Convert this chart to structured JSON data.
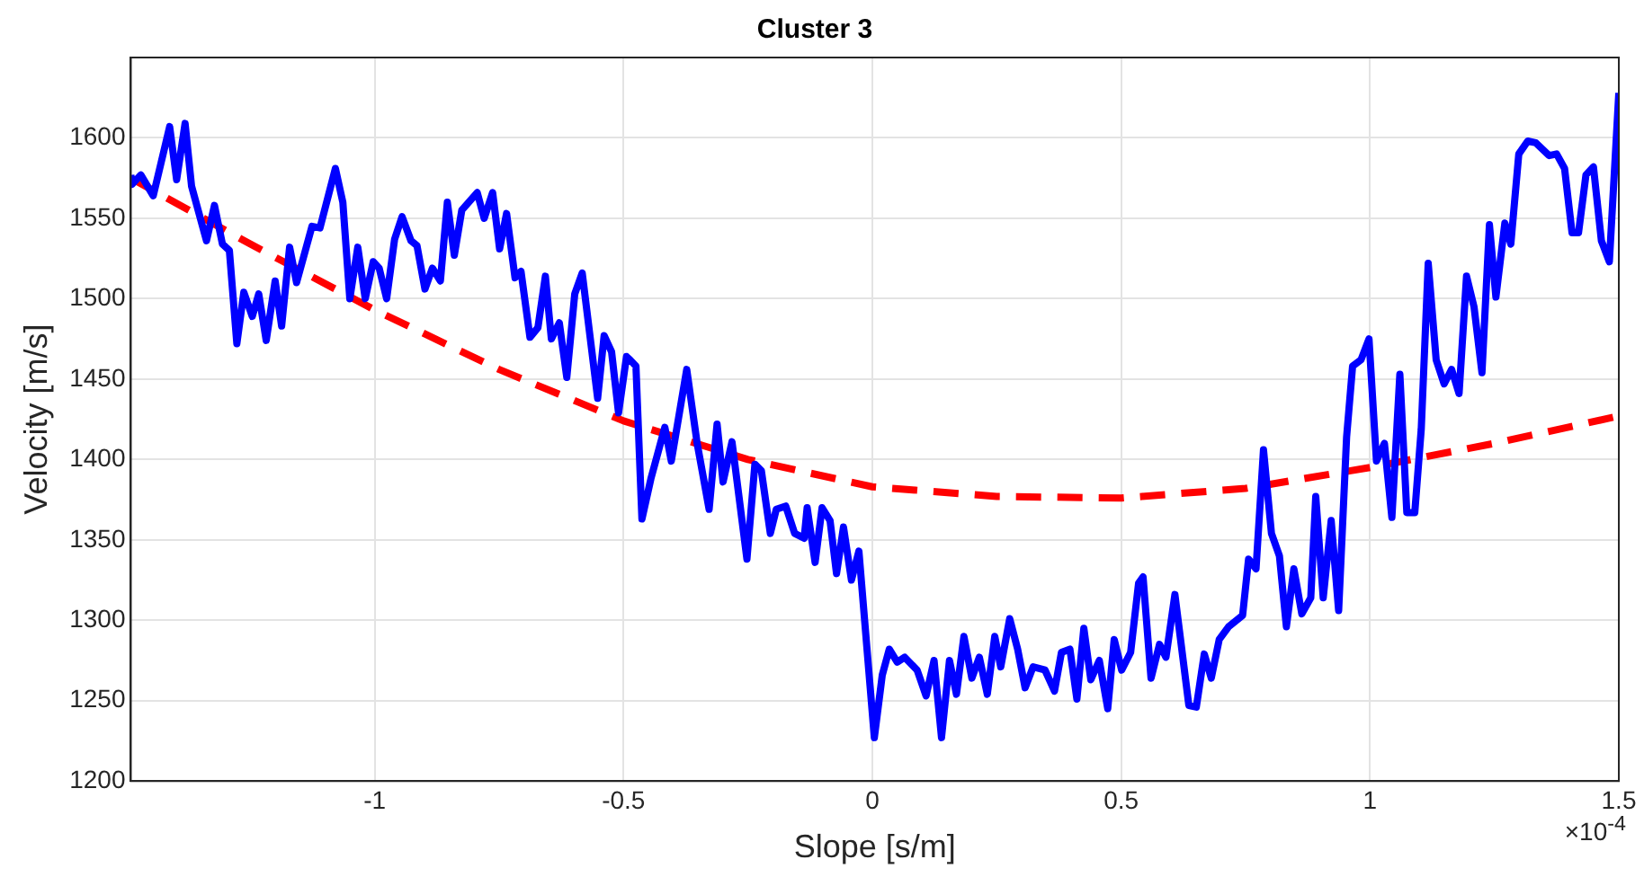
{
  "chart_data": {
    "type": "line",
    "title": "Cluster 3",
    "xlabel": "Slope [s/m]",
    "ylabel": "Velocity [m/s]",
    "annotations": [
      "×10$^{-4}$"
    ],
    "xlim": [
      -1.49,
      1.5
    ],
    "xticks": [
      -1,
      -0.5,
      0,
      0.5,
      1,
      1.5
    ],
    "ylim": [
      1200,
      1650
    ],
    "yticks": [
      1200,
      1250,
      1300,
      1350,
      1400,
      1450,
      1500,
      1550,
      1600
    ],
    "grid": true,
    "legend": false,
    "marker": "none",
    "series": [
      {
        "color": "#0000ff",
        "line_style": "solid",
        "x": [
          -1.49,
          -1.488,
          -1.47,
          -1.445,
          -1.412,
          -1.398,
          -1.381,
          -1.368,
          -1.338,
          -1.322,
          -1.306,
          -1.292,
          -1.277,
          -1.263,
          -1.246,
          -1.233,
          -1.218,
          -1.2,
          -1.187,
          -1.171,
          -1.157,
          -1.126,
          -1.11,
          -1.079,
          -1.064,
          -1.05,
          -1.034,
          -1.019,
          -1.003,
          -0.991,
          -0.976,
          -0.96,
          -0.945,
          -0.927,
          -0.915,
          -0.899,
          -0.884,
          -0.868,
          -0.854,
          -0.84,
          -0.825,
          -0.794,
          -0.78,
          -0.763,
          -0.749,
          -0.735,
          -0.718,
          -0.706,
          -0.688,
          -0.672,
          -0.657,
          -0.645,
          -0.629,
          -0.614,
          -0.598,
          -0.583,
          -0.552,
          -0.539,
          -0.524,
          -0.51,
          -0.494,
          -0.487,
          -0.475,
          -0.463,
          -0.445,
          -0.417,
          -0.404,
          -0.373,
          -0.352,
          -0.328,
          -0.312,
          -0.3,
          -0.282,
          -0.252,
          -0.236,
          -0.223,
          -0.205,
          -0.193,
          -0.174,
          -0.156,
          -0.137,
          -0.131,
          -0.115,
          -0.101,
          -0.085,
          -0.072,
          -0.058,
          -0.042,
          -0.027,
          0.004,
          0.02,
          0.034,
          0.05,
          0.065,
          0.09,
          0.108,
          0.124,
          0.139,
          0.155,
          0.169,
          0.184,
          0.2,
          0.215,
          0.231,
          0.246,
          0.258,
          0.276,
          0.292,
          0.307,
          0.323,
          0.347,
          0.366,
          0.38,
          0.397,
          0.411,
          0.425,
          0.439,
          0.456,
          0.473,
          0.486,
          0.501,
          0.519,
          0.535,
          0.544,
          0.56,
          0.577,
          0.59,
          0.608,
          0.636,
          0.651,
          0.667,
          0.681,
          0.697,
          0.716,
          0.744,
          0.756,
          0.771,
          0.786,
          0.802,
          0.818,
          0.832,
          0.847,
          0.863,
          0.881,
          0.891,
          0.906,
          0.922,
          0.937,
          0.953,
          0.965,
          0.982,
          0.998,
          1.013,
          1.029,
          1.044,
          1.06,
          1.074,
          1.09,
          1.103,
          1.117,
          1.133,
          1.149,
          1.164,
          1.179,
          1.194,
          1.209,
          1.225,
          1.24,
          1.253,
          1.271,
          1.283,
          1.299,
          1.317,
          1.333,
          1.36,
          1.375,
          1.391,
          1.406,
          1.419,
          1.434,
          1.449,
          1.465,
          1.481,
          1.5
        ],
        "values": [
          1577,
          1571,
          1577,
          1564,
          1607,
          1574,
          1609,
          1570,
          1536,
          1558,
          1534,
          1530,
          1472,
          1504,
          1489,
          1503,
          1474,
          1511,
          1483,
          1532,
          1510,
          1545,
          1544,
          1581,
          1560,
          1500,
          1532,
          1500,
          1523,
          1519,
          1500,
          1537,
          1551,
          1536,
          1533,
          1506,
          1519,
          1511,
          1560,
          1527,
          1555,
          1566,
          1550,
          1566,
          1531,
          1553,
          1513,
          1517,
          1476,
          1482,
          1514,
          1475,
          1485,
          1451,
          1503,
          1516,
          1438,
          1477,
          1467,
          1429,
          1464,
          1462,
          1458,
          1363,
          1388,
          1420,
          1399,
          1456,
          1410,
          1369,
          1422,
          1386,
          1411,
          1338,
          1397,
          1393,
          1354,
          1369,
          1371,
          1354,
          1351,
          1370,
          1336,
          1370,
          1362,
          1329,
          1358,
          1325,
          1343,
          1227,
          1266,
          1282,
          1274,
          1277,
          1269,
          1253,
          1275,
          1227,
          1275,
          1254,
          1290,
          1264,
          1277,
          1254,
          1290,
          1271,
          1301,
          1282,
          1258,
          1271,
          1269,
          1256,
          1280,
          1282,
          1251,
          1295,
          1263,
          1275,
          1245,
          1288,
          1269,
          1280,
          1323,
          1327,
          1264,
          1285,
          1277,
          1316,
          1247,
          1246,
          1279,
          1264,
          1288,
          1296,
          1303,
          1338,
          1332,
          1406,
          1354,
          1340,
          1296,
          1332,
          1304,
          1314,
          1377,
          1314,
          1362,
          1306,
          1414,
          1458,
          1462,
          1475,
          1399,
          1410,
          1364,
          1453,
          1367,
          1367,
          1419,
          1522,
          1462,
          1447,
          1456,
          1441,
          1514,
          1495,
          1454,
          1546,
          1501,
          1547,
          1534,
          1590,
          1598,
          1597,
          1589,
          1590,
          1581,
          1541,
          1541,
          1577,
          1582,
          1536,
          1523,
          1628
        ]
      },
      {
        "color": "#ff0000",
        "line_style": "dashed",
        "x": [
          -1.49,
          -1.25,
          -1,
          -0.75,
          -0.5,
          -0.25,
          0,
          0.25,
          0.5,
          0.75,
          1,
          1.25,
          1.5
        ],
        "values": [
          1575,
          1534,
          1493,
          1456,
          1424,
          1400,
          1383,
          1377,
          1376,
          1382,
          1395,
          1410,
          1427
        ]
      }
    ]
  }
}
